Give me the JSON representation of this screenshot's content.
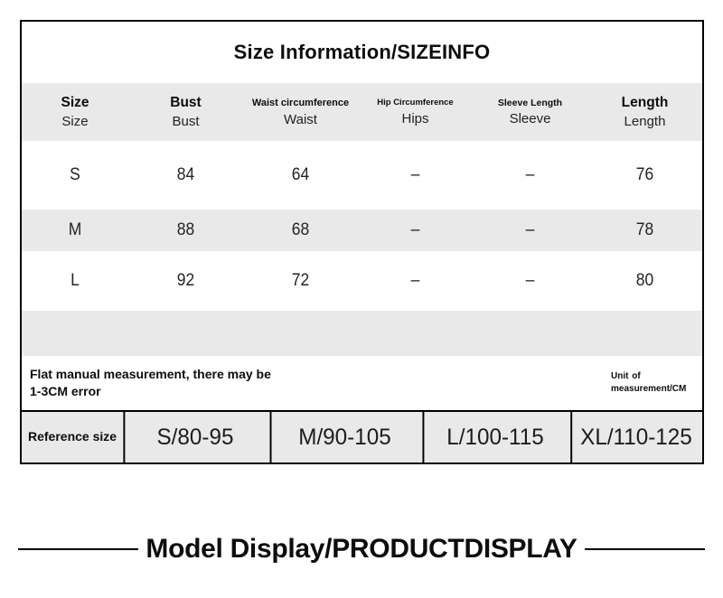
{
  "size_table": {
    "title": "Size Information/SIZEINFO",
    "columns": [
      {
        "primary": "Size",
        "secondary": "Size"
      },
      {
        "primary": "Bust",
        "secondary": "Bust"
      },
      {
        "primary": "Waist circumference",
        "secondary": "Waist"
      },
      {
        "primary": "Hip Circumference",
        "secondary": "Hips"
      },
      {
        "primary": "Sleeve Length",
        "secondary": "Sleeve"
      },
      {
        "primary": "Length",
        "secondary": "Length"
      }
    ],
    "rows": [
      {
        "size": "S",
        "bust": "84",
        "waist": "64",
        "hips": "–",
        "sleeve": "–",
        "length": "76"
      },
      {
        "size": "M",
        "bust": "88",
        "waist": "68",
        "hips": "–",
        "sleeve": "–",
        "length": "78"
      },
      {
        "size": "L",
        "bust": "92",
        "waist": "72",
        "hips": "–",
        "sleeve": "–",
        "length": "80"
      }
    ],
    "notes": {
      "measurement": "Flat manual measurement, there may be 1-3CM error",
      "unit": "Unit of measurement/CM"
    },
    "reference": {
      "label": "Reference size",
      "values": [
        "S/80-95",
        "M/90-105",
        "L/100-115",
        "XL/110-125"
      ]
    }
  },
  "sections": {
    "model_display_title": "Model Display/PRODUCTDISPLAY"
  },
  "colors": {
    "stripe": "#e9e9e9",
    "border": "#000000",
    "text": "#161616"
  }
}
